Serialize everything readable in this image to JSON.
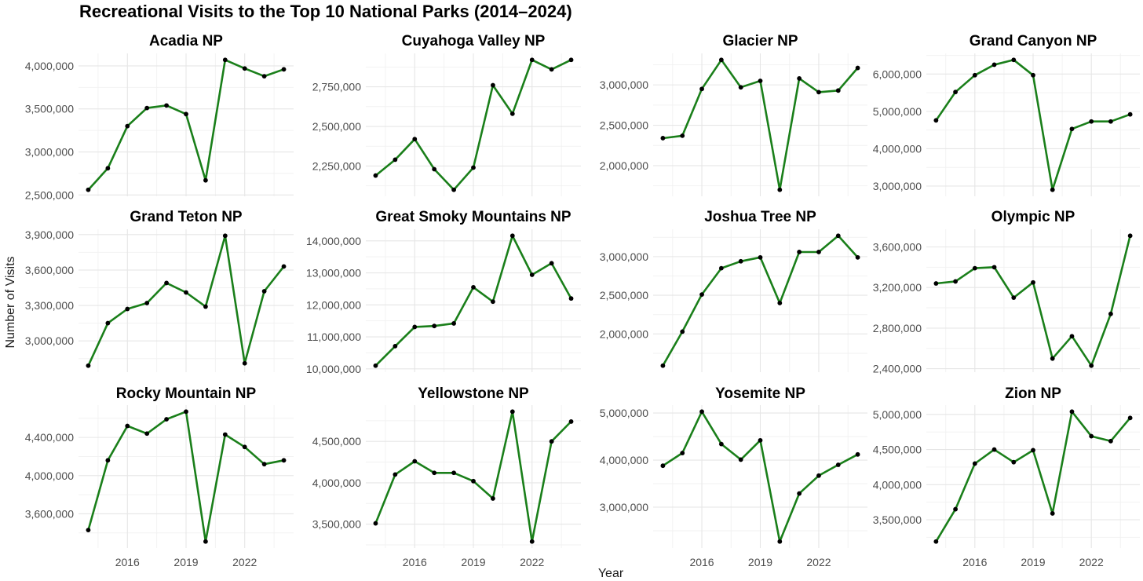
{
  "title": "Recreational Visits to the Top 10 National Parks (2014–2024)",
  "ylabel": "Number of Visits",
  "xlabel": "Year",
  "colors": {
    "line": "#1a7f1a",
    "point": "#000000",
    "grid_major": "#e6e6e6",
    "grid_minor": "#f2f2f2"
  },
  "chart_data": [
    {
      "type": "line",
      "title": "Acadia NP",
      "x": [
        2014,
        2015,
        2016,
        2017,
        2018,
        2019,
        2020,
        2021,
        2022,
        2023,
        2024
      ],
      "values": [
        2560000,
        2810000,
        3300000,
        3510000,
        3540000,
        3440000,
        2670000,
        4070000,
        3970000,
        3880000,
        3960000
      ],
      "yticks": [
        2500000,
        3000000,
        3500000,
        4000000
      ],
      "ytick_labels": [
        "2,500,000",
        "3,000,000",
        "3,500,000",
        "4,000,000"
      ],
      "xticks": [
        2016,
        2019,
        2022
      ],
      "xtick_labels": [
        "",
        "",
        ""
      ]
    },
    {
      "type": "line",
      "title": "Cuyahoga Valley NP",
      "x": [
        2014,
        2015,
        2016,
        2017,
        2018,
        2019,
        2020,
        2021,
        2022,
        2023,
        2024
      ],
      "values": [
        2190000,
        2290000,
        2420000,
        2230000,
        2100000,
        2240000,
        2760000,
        2580000,
        2920000,
        2860000,
        2920000
      ],
      "yticks": [
        2250000,
        2500000,
        2750000
      ],
      "ytick_labels": [
        "2,250,000",
        "2,500,000",
        "2,750,000"
      ],
      "xticks": [
        2016,
        2019,
        2022
      ],
      "xtick_labels": [
        "",
        "",
        ""
      ]
    },
    {
      "type": "line",
      "title": "Glacier NP",
      "x": [
        2014,
        2015,
        2016,
        2017,
        2018,
        2019,
        2020,
        2021,
        2022,
        2023,
        2024
      ],
      "values": [
        2340000,
        2370000,
        2950000,
        3310000,
        2970000,
        3050000,
        1700000,
        3080000,
        2910000,
        2930000,
        3210000
      ],
      "yticks": [
        2000000,
        2500000,
        3000000
      ],
      "ytick_labels": [
        "2,000,000",
        "2,500,000",
        "3,000,000"
      ],
      "xticks": [
        2016,
        2019,
        2022
      ],
      "xtick_labels": [
        "",
        "",
        ""
      ]
    },
    {
      "type": "line",
      "title": "Grand Canyon NP",
      "x": [
        2014,
        2015,
        2016,
        2017,
        2018,
        2019,
        2020,
        2021,
        2022,
        2023,
        2024
      ],
      "values": [
        4760000,
        5520000,
        5970000,
        6250000,
        6380000,
        5970000,
        2900000,
        4530000,
        4730000,
        4730000,
        4920000
      ],
      "yticks": [
        3000000,
        4000000,
        5000000,
        6000000
      ],
      "ytick_labels": [
        "3,000,000",
        "4,000,000",
        "5,000,000",
        "6,000,000"
      ],
      "xticks": [
        2016,
        2019,
        2022
      ],
      "xtick_labels": [
        "",
        "",
        ""
      ]
    },
    {
      "type": "line",
      "title": "Grand Teton NP",
      "x": [
        2014,
        2015,
        2016,
        2017,
        2018,
        2019,
        2020,
        2021,
        2022,
        2023,
        2024
      ],
      "values": [
        2790000,
        3150000,
        3270000,
        3320000,
        3490000,
        3410000,
        3290000,
        3890000,
        2810000,
        3420000,
        3630000
      ],
      "yticks": [
        3000000,
        3300000,
        3600000,
        3900000
      ],
      "ytick_labels": [
        "3,000,000",
        "3,300,000",
        "3,600,000",
        "3,900,000"
      ],
      "xticks": [
        2016,
        2019,
        2022
      ],
      "xtick_labels": [
        "",
        "",
        ""
      ]
    },
    {
      "type": "line",
      "title": "Great Smoky Mountains NP",
      "x": [
        2014,
        2015,
        2016,
        2017,
        2018,
        2019,
        2020,
        2021,
        2022,
        2023,
        2024
      ],
      "values": [
        10100000,
        10710000,
        11310000,
        11340000,
        11420000,
        12550000,
        12100000,
        14160000,
        12940000,
        13300000,
        12200000
      ],
      "yticks": [
        10000000,
        11000000,
        12000000,
        13000000,
        14000000
      ],
      "ytick_labels": [
        "10,000,000",
        "11,000,000",
        "12,000,000",
        "13,000,000",
        "14,000,000"
      ],
      "xticks": [
        2016,
        2019,
        2022
      ],
      "xtick_labels": [
        "",
        "",
        ""
      ]
    },
    {
      "type": "line",
      "title": "Joshua Tree NP",
      "x": [
        2014,
        2015,
        2016,
        2017,
        2018,
        2019,
        2020,
        2021,
        2022,
        2023,
        2024
      ],
      "values": [
        1590000,
        2030000,
        2510000,
        2850000,
        2940000,
        2990000,
        2400000,
        3060000,
        3060000,
        3270000,
        2990000
      ],
      "yticks": [
        2000000,
        2500000,
        3000000
      ],
      "ytick_labels": [
        "2,000,000",
        "2,500,000",
        "3,000,000"
      ],
      "xticks": [
        2016,
        2019,
        2022
      ],
      "xtick_labels": [
        "",
        "",
        ""
      ]
    },
    {
      "type": "line",
      "title": "Olympic NP",
      "x": [
        2014,
        2015,
        2016,
        2017,
        2018,
        2019,
        2020,
        2021,
        2022,
        2023,
        2024
      ],
      "values": [
        3240000,
        3260000,
        3390000,
        3400000,
        3100000,
        3250000,
        2500000,
        2720000,
        2430000,
        2940000,
        3710000
      ],
      "yticks": [
        2400000,
        2800000,
        3200000,
        3600000
      ],
      "ytick_labels": [
        "2,400,000",
        "2,800,000",
        "3,200,000",
        "3,600,000"
      ],
      "xticks": [
        2016,
        2019,
        2022
      ],
      "xtick_labels": [
        "",
        "",
        ""
      ]
    },
    {
      "type": "line",
      "title": "Rocky Mountain NP",
      "x": [
        2014,
        2015,
        2016,
        2017,
        2018,
        2019,
        2020,
        2021,
        2022,
        2023,
        2024
      ],
      "values": [
        3430000,
        4160000,
        4520000,
        4440000,
        4590000,
        4670000,
        3310000,
        4430000,
        4300000,
        4120000,
        4160000
      ],
      "yticks": [
        3600000,
        4000000,
        4400000
      ],
      "ytick_labels": [
        "3,600,000",
        "4,000,000",
        "4,400,000"
      ],
      "xticks": [
        2016,
        2019,
        2022
      ],
      "xtick_labels": [
        "2016",
        "2019",
        "2022"
      ]
    },
    {
      "type": "line",
      "title": "Yellowstone NP",
      "x": [
        2014,
        2015,
        2016,
        2017,
        2018,
        2019,
        2020,
        2021,
        2022,
        2023,
        2024
      ],
      "values": [
        3510000,
        4100000,
        4260000,
        4120000,
        4120000,
        4020000,
        3810000,
        4860000,
        3290000,
        4500000,
        4740000
      ],
      "yticks": [
        3500000,
        4000000,
        4500000
      ],
      "ytick_labels": [
        "3,500,000",
        "4,000,000",
        "4,500,000"
      ],
      "xticks": [
        2016,
        2019,
        2022
      ],
      "xtick_labels": [
        "2016",
        "2019",
        "2022"
      ]
    },
    {
      "type": "line",
      "title": "Yosemite NP",
      "x": [
        2014,
        2015,
        2016,
        2017,
        2018,
        2019,
        2020,
        2021,
        2022,
        2023,
        2024
      ],
      "values": [
        3880000,
        4150000,
        5030000,
        4340000,
        4010000,
        4420000,
        2270000,
        3290000,
        3670000,
        3900000,
        4120000
      ],
      "yticks": [
        3000000,
        4000000,
        5000000
      ],
      "ytick_labels": [
        "3,000,000",
        "4,000,000",
        "5,000,000"
      ],
      "xticks": [
        2016,
        2019,
        2022
      ],
      "xtick_labels": [
        "2016",
        "2019",
        "2022"
      ]
    },
    {
      "type": "line",
      "title": "Zion NP",
      "x": [
        2014,
        2015,
        2016,
        2017,
        2018,
        2019,
        2020,
        2021,
        2022,
        2023,
        2024
      ],
      "values": [
        3190000,
        3650000,
        4300000,
        4500000,
        4320000,
        4490000,
        3590000,
        5040000,
        4690000,
        4620000,
        4950000
      ],
      "yticks": [
        3500000,
        4000000,
        4500000,
        5000000
      ],
      "ytick_labels": [
        "3,500,000",
        "4,000,000",
        "4,500,000",
        "5,000,000"
      ],
      "xticks": [
        2016,
        2019,
        2022
      ],
      "xtick_labels": [
        "2016",
        "2019",
        "2022"
      ]
    }
  ]
}
